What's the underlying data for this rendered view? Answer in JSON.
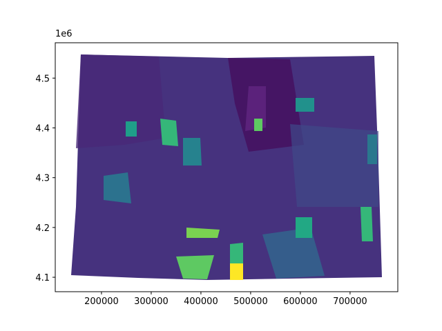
{
  "chart_data": {
    "type": "map",
    "offset_text": "1e6",
    "xlim": [
      107000,
      796000
    ],
    "xticks": [
      200000,
      300000,
      400000,
      500000,
      600000,
      700000
    ],
    "ylim": [
      4071000,
      4571000
    ],
    "yticks": [
      {
        "value": 4100000,
        "label": "4.1"
      },
      {
        "value": 4200000,
        "label": "4.2"
      },
      {
        "value": 4300000,
        "label": "4.3"
      },
      {
        "value": 4400000,
        "label": "4.4"
      },
      {
        "value": 4500000,
        "label": "4.5"
      }
    ]
  }
}
